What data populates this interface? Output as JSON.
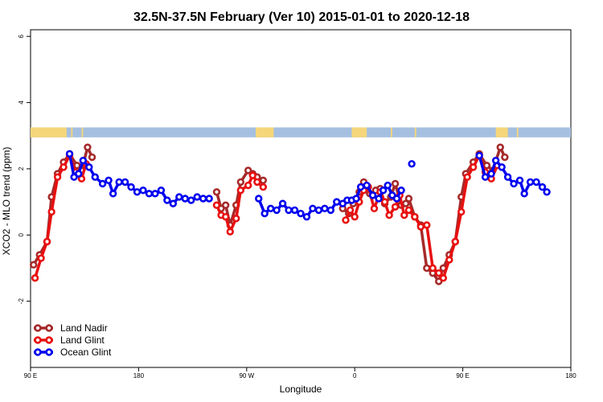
{
  "chart_data": {
    "type": "line",
    "title": "32.5N-37.5N February (Ver 10)   2015-01-01 to 2020-12-18",
    "xlabel": "Longitude",
    "ylabel": "XCO2 - MLO trend (ppm)",
    "xlim": [
      90,
      450
    ],
    "ylim": [
      -4,
      6.2
    ],
    "x_ticks": [
      {
        "value": 90,
        "label": "90 E"
      },
      {
        "value": 162,
        "label": "180"
      },
      {
        "value": 234,
        "label": "90 W"
      },
      {
        "value": 306,
        "label": "0"
      },
      {
        "value": 378,
        "label": "90 E"
      },
      {
        "value": 450,
        "label": "180"
      }
    ],
    "y_ticks": [
      {
        "value": -2,
        "label": "-2"
      },
      {
        "value": 0,
        "label": "0"
      },
      {
        "value": 2,
        "label": "2"
      },
      {
        "value": 4,
        "label": "4"
      },
      {
        "value": 6,
        "label": "6"
      }
    ],
    "land_ocean_band": {
      "y_range": [
        2.95,
        3.25
      ],
      "ocean_color": "#a5bfe0",
      "land_color": "#f5d67a",
      "land_segments": [
        [
          90,
          114
        ],
        [
          117,
          118
        ],
        [
          124,
          125
        ],
        [
          240,
          252
        ],
        [
          304,
          314
        ],
        [
          330,
          331
        ],
        [
          346,
          347
        ],
        [
          400,
          408
        ],
        [
          414,
          415
        ]
      ]
    },
    "legend": {
      "position": "bottom-left"
    },
    "series": [
      {
        "name": "Land Nadir",
        "color": "#a52a2a",
        "points": [
          [
            92,
            -0.9
          ],
          [
            96,
            -0.6
          ],
          [
            101,
            -0.2
          ],
          [
            104,
            1.15
          ],
          [
            108,
            1.85
          ],
          [
            112,
            2.2
          ],
          [
            116,
            2.45
          ],
          [
            121,
            2.1
          ],
          [
            124,
            1.95
          ],
          [
            128,
            2.65
          ],
          [
            131,
            2.35
          ],
          [
            214,
            1.3
          ],
          [
            217,
            0.8
          ],
          [
            220,
            0.9
          ],
          [
            223,
            0.3
          ],
          [
            227,
            0.9
          ],
          [
            230,
            1.6
          ],
          [
            235,
            1.95
          ],
          [
            238,
            1.85
          ],
          [
            241,
            1.75
          ],
          [
            245,
            1.65
          ],
          [
            298,
            0.8
          ],
          [
            302,
            0.65
          ],
          [
            305,
            0.95
          ],
          [
            309,
            1.3
          ],
          [
            312,
            1.6
          ],
          [
            316,
            1.25
          ],
          [
            320,
            1.35
          ],
          [
            323,
            1.4
          ],
          [
            326,
            0.95
          ],
          [
            330,
            1.15
          ],
          [
            333,
            1.55
          ],
          [
            337,
            0.9
          ],
          [
            340,
            0.95
          ],
          [
            342,
            1.1
          ],
          [
            346,
            0.55
          ],
          [
            350,
            0.3
          ],
          [
            354,
            -1.0
          ],
          [
            358,
            -1.15
          ],
          [
            362,
            -1.4
          ],
          [
            365,
            -1.0
          ],
          [
            369,
            -0.6
          ],
          [
            373,
            -0.2
          ],
          [
            377,
            1.15
          ],
          [
            380,
            1.85
          ],
          [
            385,
            2.2
          ],
          [
            389,
            2.45
          ],
          [
            394,
            2.1
          ],
          [
            398,
            1.95
          ],
          [
            403,
            2.65
          ],
          [
            406,
            2.35
          ]
        ]
      },
      {
        "name": "Land Glint",
        "color": "#e81010",
        "points": [
          [
            93,
            -1.3
          ],
          [
            97,
            -0.7
          ],
          [
            101,
            -0.2
          ],
          [
            104,
            0.7
          ],
          [
            108,
            1.75
          ],
          [
            112,
            2.05
          ],
          [
            116,
            2.4
          ],
          [
            120,
            1.9
          ],
          [
            124,
            1.7
          ],
          [
            127,
            2.15
          ],
          [
            214,
            0.9
          ],
          [
            217,
            0.6
          ],
          [
            220,
            0.55
          ],
          [
            223,
            0.1
          ],
          [
            227,
            0.5
          ],
          [
            230,
            1.35
          ],
          [
            235,
            1.5
          ],
          [
            238,
            1.8
          ],
          [
            241,
            1.6
          ],
          [
            245,
            1.45
          ],
          [
            300,
            0.45
          ],
          [
            303,
            0.75
          ],
          [
            306,
            0.55
          ],
          [
            309,
            1.0
          ],
          [
            312,
            1.35
          ],
          [
            315,
            1.45
          ],
          [
            319,
            0.8
          ],
          [
            323,
            1.3
          ],
          [
            326,
            1.0
          ],
          [
            329,
            0.6
          ],
          [
            333,
            0.85
          ],
          [
            336,
            1.2
          ],
          [
            339,
            0.6
          ],
          [
            342,
            0.75
          ],
          [
            346,
            0.55
          ],
          [
            350,
            0.25
          ],
          [
            354,
            0.3
          ],
          [
            358,
            -1.0
          ],
          [
            362,
            -1.15
          ],
          [
            365,
            -1.3
          ],
          [
            369,
            -0.75
          ],
          [
            373,
            -0.2
          ],
          [
            377,
            0.7
          ],
          [
            381,
            1.75
          ],
          [
            385,
            2.05
          ],
          [
            389,
            2.4
          ],
          [
            393,
            1.9
          ],
          [
            397,
            1.7
          ],
          [
            401,
            2.1
          ]
        ]
      },
      {
        "name": "Ocean Glint",
        "color": "#0000ee",
        "points": [
          [
            116,
            2.45
          ],
          [
            119,
            1.75
          ],
          [
            122,
            1.85
          ],
          [
            125,
            2.25
          ],
          [
            129,
            2.05
          ],
          [
            133,
            1.75
          ],
          [
            138,
            1.55
          ],
          [
            142,
            1.65
          ],
          [
            145,
            1.25
          ],
          [
            149,
            1.6
          ],
          [
            153,
            1.6
          ],
          [
            157,
            1.45
          ],
          [
            161,
            1.3
          ],
          [
            165,
            1.35
          ],
          [
            169,
            1.25
          ],
          [
            173,
            1.25
          ],
          [
            177,
            1.35
          ],
          [
            181,
            1.05
          ],
          [
            185,
            0.95
          ],
          [
            189,
            1.15
          ],
          [
            193,
            1.1
          ],
          [
            197,
            1.05
          ],
          [
            201,
            1.15
          ],
          [
            205,
            1.1
          ],
          [
            209,
            1.1
          ],
          [
            242,
            1.1
          ],
          [
            246,
            0.65
          ],
          [
            250,
            0.8
          ],
          [
            254,
            0.75
          ],
          [
            258,
            0.95
          ],
          [
            262,
            0.75
          ],
          [
            266,
            0.75
          ],
          [
            270,
            0.65
          ],
          [
            274,
            0.55
          ],
          [
            278,
            0.8
          ],
          [
            282,
            0.75
          ],
          [
            286,
            0.8
          ],
          [
            290,
            0.75
          ],
          [
            294,
            1.0
          ],
          [
            298,
            0.95
          ],
          [
            301,
            1.05
          ],
          [
            304,
            1.05
          ],
          [
            307,
            1.1
          ],
          [
            310,
            1.45
          ],
          [
            314,
            1.5
          ],
          [
            318,
            1.2
          ],
          [
            322,
            1.1
          ],
          [
            325,
            1.35
          ],
          [
            328,
            1.5
          ],
          [
            331,
            1.2
          ],
          [
            334,
            1.1
          ],
          [
            337,
            1.35
          ],
          [
            389,
            2.4
          ],
          [
            393,
            1.75
          ],
          [
            397,
            1.85
          ],
          [
            400,
            2.25
          ],
          [
            404,
            2.05
          ],
          [
            408,
            1.75
          ],
          [
            412,
            1.55
          ],
          [
            416,
            1.65
          ],
          [
            419,
            1.25
          ],
          [
            423,
            1.6
          ],
          [
            427,
            1.6
          ],
          [
            431,
            1.45
          ],
          [
            434,
            1.3
          ]
        ]
      },
      {
        "name": "",
        "color": "#0000ee",
        "points": [
          [
            344,
            2.15
          ]
        ]
      }
    ]
  }
}
